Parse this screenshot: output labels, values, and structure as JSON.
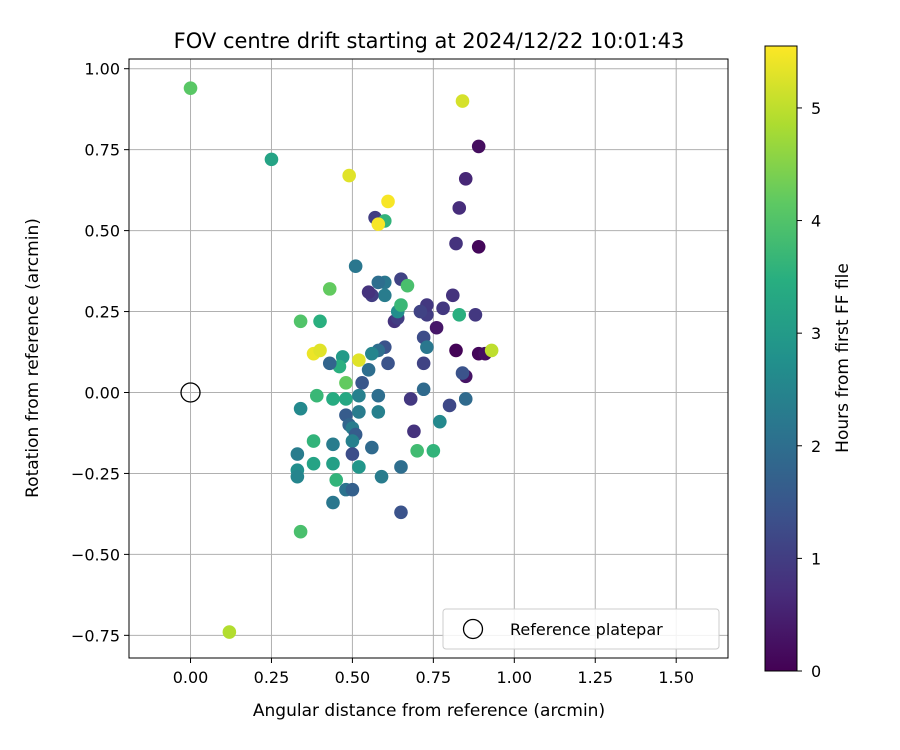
{
  "chart_data": {
    "type": "scatter",
    "title": "FOV centre drift starting at 2024/12/22 10:01:43",
    "xlabel": "Angular distance from reference (arcmin)",
    "ylabel": "Rotation from reference (arcmin)",
    "xlim": [
      -0.19,
      1.66
    ],
    "ylim": [
      -0.82,
      1.03
    ],
    "xticks": [
      0.0,
      0.25,
      0.5,
      0.75,
      1.0,
      1.25,
      1.5
    ],
    "yticks": [
      -0.75,
      -0.5,
      -0.25,
      0.0,
      0.25,
      0.5,
      0.75,
      1.0
    ],
    "xtick_labels": [
      "0.00",
      "0.25",
      "0.50",
      "0.75",
      "1.00",
      "1.25",
      "1.50"
    ],
    "ytick_labels": [
      "−0.75",
      "−0.50",
      "−0.25",
      "0.00",
      "0.25",
      "0.50",
      "0.75",
      "1.00"
    ],
    "grid": true,
    "colormap": "viridis",
    "colorbar": {
      "label": "Hours from first FF file",
      "range": [
        0,
        5.55
      ],
      "ticks": [
        0,
        1,
        2,
        3,
        4,
        5
      ],
      "tick_labels": [
        "0",
        "1",
        "2",
        "3",
        "4",
        "5"
      ]
    },
    "reference_point": {
      "x": 0.0,
      "y": 0.0
    },
    "legend": {
      "label": "Reference platepar",
      "position": "lower-right"
    },
    "points": [
      {
        "x": 0.89,
        "y": 0.76,
        "c": 0.2
      },
      {
        "x": 0.89,
        "y": 0.45,
        "c": 0.1
      },
      {
        "x": 0.82,
        "y": 0.13,
        "c": 0.05
      },
      {
        "x": 0.89,
        "y": 0.12,
        "c": 0.1
      },
      {
        "x": 0.91,
        "y": 0.12,
        "c": 0.2
      },
      {
        "x": 0.85,
        "y": 0.05,
        "c": 0.3
      },
      {
        "x": 0.76,
        "y": 0.2,
        "c": 0.35
      },
      {
        "x": 0.85,
        "y": 0.66,
        "c": 0.6
      },
      {
        "x": 0.83,
        "y": 0.57,
        "c": 0.7
      },
      {
        "x": 0.82,
        "y": 0.46,
        "c": 0.8
      },
      {
        "x": 0.81,
        "y": 0.3,
        "c": 0.8
      },
      {
        "x": 0.78,
        "y": 0.26,
        "c": 0.9
      },
      {
        "x": 0.73,
        "y": 0.24,
        "c": 1.0
      },
      {
        "x": 0.73,
        "y": 0.27,
        "c": 0.9
      },
      {
        "x": 0.71,
        "y": 0.25,
        "c": 1.1
      },
      {
        "x": 0.88,
        "y": 0.24,
        "c": 0.9
      },
      {
        "x": 0.84,
        "y": 0.06,
        "c": 1.4
      },
      {
        "x": 0.8,
        "y": -0.04,
        "c": 1.2
      },
      {
        "x": 0.85,
        "y": -0.02,
        "c": 1.9
      },
      {
        "x": 0.72,
        "y": 0.17,
        "c": 1.3
      },
      {
        "x": 0.72,
        "y": 0.09,
        "c": 1.1
      },
      {
        "x": 0.73,
        "y": 0.14,
        "c": 2.2
      },
      {
        "x": 0.72,
        "y": 0.01,
        "c": 1.9
      },
      {
        "x": 0.68,
        "y": -0.02,
        "c": 0.9
      },
      {
        "x": 0.69,
        "y": -0.12,
        "c": 0.8
      },
      {
        "x": 0.77,
        "y": -0.09,
        "c": 2.6
      },
      {
        "x": 0.7,
        "y": -0.18,
        "c": 3.8
      },
      {
        "x": 0.75,
        "y": -0.18,
        "c": 3.6
      },
      {
        "x": 0.65,
        "y": 0.35,
        "c": 1.1
      },
      {
        "x": 0.63,
        "y": 0.22,
        "c": 0.8
      },
      {
        "x": 0.64,
        "y": 0.23,
        "c": 1.0
      },
      {
        "x": 0.64,
        "y": 0.25,
        "c": 2.7
      },
      {
        "x": 0.65,
        "y": 0.27,
        "c": 3.7
      },
      {
        "x": 0.67,
        "y": 0.33,
        "c": 3.9
      },
      {
        "x": 0.6,
        "y": 0.34,
        "c": 2.2
      },
      {
        "x": 0.58,
        "y": 0.34,
        "c": 2.0
      },
      {
        "x": 0.6,
        "y": 0.3,
        "c": 2.3
      },
      {
        "x": 0.56,
        "y": 0.3,
        "c": 1.0
      },
      {
        "x": 0.55,
        "y": 0.31,
        "c": 0.8
      },
      {
        "x": 0.6,
        "y": 0.14,
        "c": 1.4
      },
      {
        "x": 0.58,
        "y": 0.13,
        "c": 2.0
      },
      {
        "x": 0.56,
        "y": 0.12,
        "c": 2.5
      },
      {
        "x": 0.61,
        "y": 0.09,
        "c": 1.4
      },
      {
        "x": 0.55,
        "y": 0.07,
        "c": 2.0
      },
      {
        "x": 0.53,
        "y": 0.03,
        "c": 1.5
      },
      {
        "x": 0.57,
        "y": 0.54,
        "c": 1.0
      },
      {
        "x": 0.6,
        "y": 0.53,
        "c": 3.6
      },
      {
        "x": 0.58,
        "y": 0.52,
        "c": 5.5
      },
      {
        "x": 0.61,
        "y": 0.59,
        "c": 5.5
      },
      {
        "x": 0.49,
        "y": 0.67,
        "c": 5.3
      },
      {
        "x": 0.51,
        "y": 0.39,
        "c": 2.2
      },
      {
        "x": 0.52,
        "y": 0.1,
        "c": 5.3
      },
      {
        "x": 0.47,
        "y": 0.11,
        "c": 3.0
      },
      {
        "x": 0.46,
        "y": 0.08,
        "c": 3.5
      },
      {
        "x": 0.43,
        "y": 0.09,
        "c": 1.8
      },
      {
        "x": 0.48,
        "y": 0.03,
        "c": 4.2
      },
      {
        "x": 0.48,
        "y": -0.02,
        "c": 3.3
      },
      {
        "x": 0.52,
        "y": -0.01,
        "c": 2.4
      },
      {
        "x": 0.44,
        "y": -0.02,
        "c": 3.4
      },
      {
        "x": 0.39,
        "y": -0.01,
        "c": 3.7
      },
      {
        "x": 0.34,
        "y": -0.05,
        "c": 2.6
      },
      {
        "x": 0.48,
        "y": -0.07,
        "c": 1.6
      },
      {
        "x": 0.49,
        "y": -0.1,
        "c": 1.8
      },
      {
        "x": 0.5,
        "y": -0.11,
        "c": 2.3
      },
      {
        "x": 0.51,
        "y": -0.13,
        "c": 1.6
      },
      {
        "x": 0.5,
        "y": -0.15,
        "c": 2.4
      },
      {
        "x": 0.52,
        "y": -0.06,
        "c": 2.3
      },
      {
        "x": 0.58,
        "y": -0.06,
        "c": 2.4
      },
      {
        "x": 0.58,
        "y": -0.01,
        "c": 2.0
      },
      {
        "x": 0.56,
        "y": -0.17,
        "c": 1.9
      },
      {
        "x": 0.5,
        "y": -0.19,
        "c": 1.3
      },
      {
        "x": 0.52,
        "y": -0.23,
        "c": 2.9
      },
      {
        "x": 0.44,
        "y": -0.16,
        "c": 2.3
      },
      {
        "x": 0.44,
        "y": -0.22,
        "c": 3.1
      },
      {
        "x": 0.45,
        "y": -0.27,
        "c": 3.6
      },
      {
        "x": 0.48,
        "y": -0.3,
        "c": 2.1
      },
      {
        "x": 0.5,
        "y": -0.3,
        "c": 1.7
      },
      {
        "x": 0.44,
        "y": -0.34,
        "c": 2.2
      },
      {
        "x": 0.59,
        "y": -0.26,
        "c": 2.3
      },
      {
        "x": 0.65,
        "y": -0.23,
        "c": 2.0
      },
      {
        "x": 0.65,
        "y": -0.37,
        "c": 1.4
      },
      {
        "x": 0.38,
        "y": -0.15,
        "c": 3.6
      },
      {
        "x": 0.38,
        "y": -0.22,
        "c": 3.2
      },
      {
        "x": 0.33,
        "y": -0.19,
        "c": 2.3
      },
      {
        "x": 0.33,
        "y": -0.24,
        "c": 2.7
      },
      {
        "x": 0.33,
        "y": -0.26,
        "c": 2.5
      },
      {
        "x": 0.34,
        "y": -0.43,
        "c": 3.9
      },
      {
        "x": 0.34,
        "y": 0.22,
        "c": 4.0
      },
      {
        "x": 0.4,
        "y": 0.22,
        "c": 3.5
      },
      {
        "x": 0.43,
        "y": 0.32,
        "c": 4.2
      },
      {
        "x": 0.38,
        "y": 0.12,
        "c": 5.4
      },
      {
        "x": 0.4,
        "y": 0.13,
        "c": 5.3
      },
      {
        "x": 0.25,
        "y": 0.72,
        "c": 3.2
      },
      {
        "x": 0.0,
        "y": 0.94,
        "c": 4.1
      },
      {
        "x": 0.84,
        "y": 0.9,
        "c": 5.2
      },
      {
        "x": 0.93,
        "y": 0.13,
        "c": 5.0
      },
      {
        "x": 0.83,
        "y": 0.24,
        "c": 3.5
      },
      {
        "x": 0.12,
        "y": -0.74,
        "c": 4.9
      }
    ]
  }
}
